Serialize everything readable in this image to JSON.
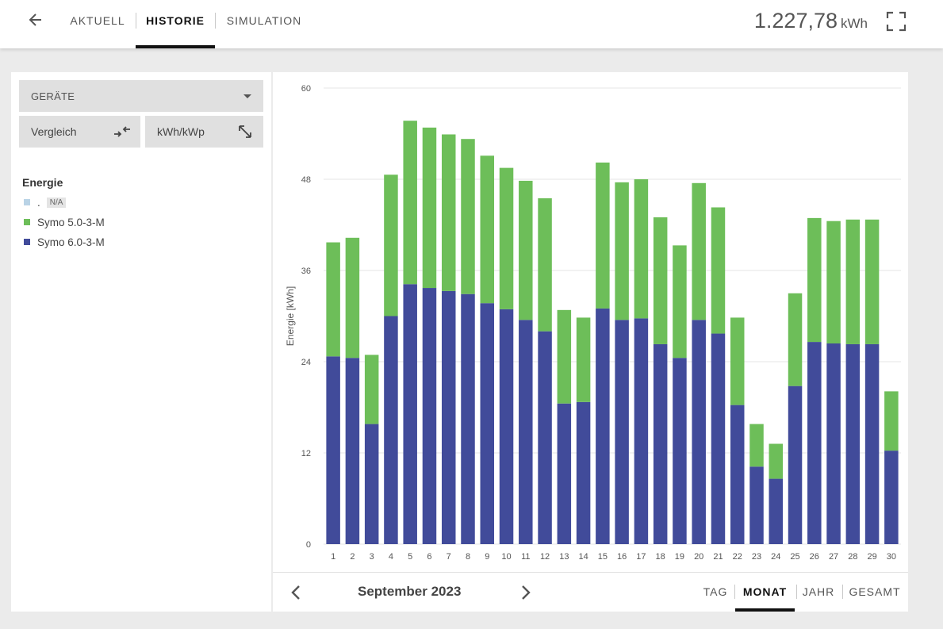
{
  "header": {
    "tabs": [
      {
        "label": "AKTUELL",
        "active": false
      },
      {
        "label": "HISTORIE",
        "active": true
      },
      {
        "label": "SIMULATION",
        "active": false
      }
    ],
    "total_value": "1.227,78",
    "total_unit": "kWh"
  },
  "controls": {
    "devices_label": "GERÄTE",
    "compare_label": "Vergleich",
    "normalize_label": "kWh/kWp"
  },
  "legend": {
    "title": "Energie",
    "items": [
      {
        "label": ".",
        "badge": "N/A",
        "color": "#b9d3e6"
      },
      {
        "label": "Symo 5.0-3-M",
        "color": "#6dbe59"
      },
      {
        "label": "Symo 6.0-3-M",
        "color": "#414b9a"
      }
    ]
  },
  "navigation": {
    "period_label": "September 2023",
    "periods": [
      {
        "label": "TAG",
        "active": false
      },
      {
        "label": "MONAT",
        "active": true
      },
      {
        "label": "JAHR",
        "active": false
      },
      {
        "label": "GESAMT",
        "active": false
      }
    ]
  },
  "colors": {
    "symo6": "#414b9a",
    "symo5": "#6dbe59",
    "grid": "#e6e6e6"
  },
  "chart_data": {
    "type": "bar",
    "stacked": true,
    "ylabel": "Energie [kWh]",
    "ylim": [
      0,
      60
    ],
    "yticks": [
      0,
      12,
      24,
      36,
      48,
      60
    ],
    "categories": [
      "1",
      "2",
      "3",
      "4",
      "5",
      "6",
      "7",
      "8",
      "9",
      "10",
      "11",
      "12",
      "13",
      "14",
      "15",
      "16",
      "17",
      "18",
      "19",
      "20",
      "21",
      "22",
      "23",
      "24",
      "25",
      "26",
      "27",
      "28",
      "29",
      "30"
    ],
    "series": [
      {
        "name": "Symo 6.0-3-M",
        "color": "#414b9a",
        "values": [
          24.7,
          24.5,
          15.8,
          30.0,
          34.2,
          33.7,
          33.3,
          32.9,
          31.7,
          30.9,
          29.5,
          28.0,
          18.5,
          18.7,
          31.0,
          29.5,
          29.7,
          26.3,
          24.5,
          29.5,
          27.7,
          18.3,
          10.2,
          8.6,
          20.8,
          26.6,
          26.4,
          26.3,
          26.3,
          12.3
        ]
      },
      {
        "name": "Symo 5.0-3-M",
        "color": "#6dbe59",
        "values": [
          15.0,
          15.8,
          9.1,
          18.6,
          21.5,
          21.1,
          20.6,
          20.4,
          19.4,
          18.6,
          18.3,
          17.5,
          12.3,
          11.1,
          19.2,
          18.1,
          18.3,
          16.7,
          14.8,
          18.0,
          16.6,
          11.5,
          5.6,
          4.6,
          12.2,
          16.3,
          16.1,
          16.4,
          16.4,
          7.8
        ]
      }
    ]
  }
}
